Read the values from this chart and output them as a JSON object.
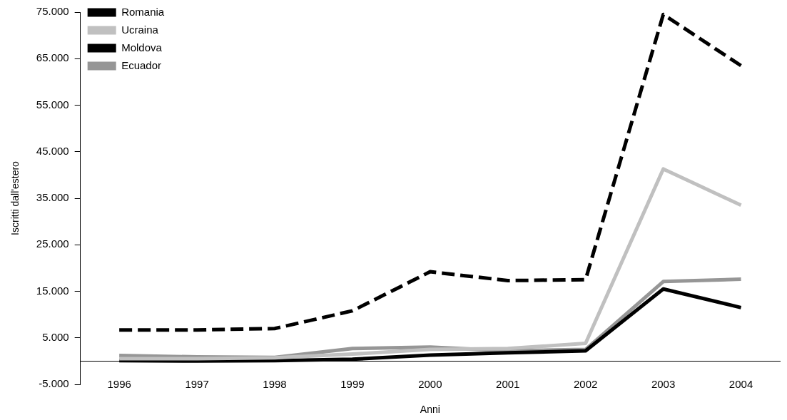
{
  "chart_data": {
    "type": "line",
    "xlabel": "Anni",
    "ylabel": "Iscritti dall'estero",
    "categories": [
      "1996",
      "1997",
      "1998",
      "1999",
      "2000",
      "2001",
      "2002",
      "2003",
      "2004"
    ],
    "series": [
      {
        "name": "Romania",
        "color": "#000000",
        "line_style": "dashed",
        "values": [
          6700,
          6700,
          7000,
          10800,
          19200,
          17300,
          17500,
          74500,
          63500
        ]
      },
      {
        "name": "Ucraina",
        "color": "#c0c0c0",
        "line_style": "solid",
        "values": [
          500,
          500,
          700,
          1500,
          2500,
          2700,
          3800,
          41300,
          33500
        ]
      },
      {
        "name": "Moldova",
        "color": "#000000",
        "line_style": "solid",
        "values": [
          100,
          0,
          100,
          400,
          1300,
          1800,
          2200,
          15500,
          11500
        ]
      },
      {
        "name": "Ecuador",
        "color": "#969696",
        "line_style": "solid",
        "values": [
          1200,
          900,
          800,
          2700,
          3000,
          2200,
          2500,
          17100,
          17600
        ]
      }
    ],
    "ylim": [
      -5000,
      75000
    ],
    "yticks": [
      {
        "value": -5000,
        "label": "-5.000"
      },
      {
        "value": 5000,
        "label": "5.000"
      },
      {
        "value": 15000,
        "label": "15.000"
      },
      {
        "value": 25000,
        "label": "25.000"
      },
      {
        "value": 35000,
        "label": "35.000"
      },
      {
        "value": 45000,
        "label": "45.000"
      },
      {
        "value": 55000,
        "label": "55.000"
      },
      {
        "value": 65000,
        "label": "65.000"
      },
      {
        "value": 75000,
        "label": "75.000"
      }
    ],
    "grid": false,
    "legend": "top left",
    "marker": "none"
  }
}
